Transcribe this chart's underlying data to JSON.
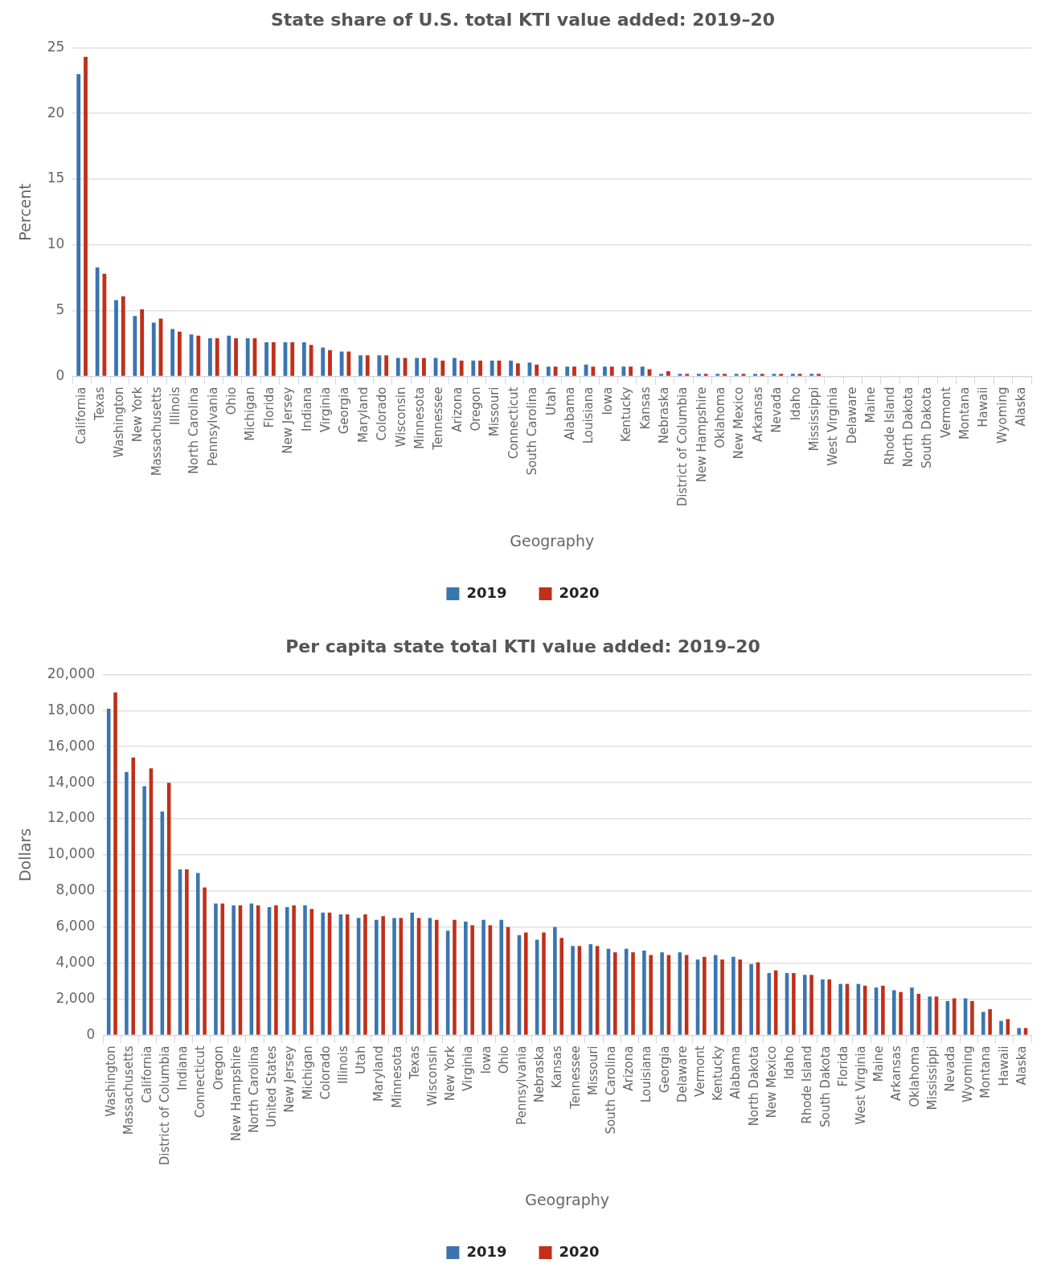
{
  "chart_data": [
    {
      "type": "bar",
      "title": "State share of U.S. total KTI value added: 2019–20",
      "xlabel": "Geography",
      "ylabel": "Percent",
      "categories": [
        "California",
        "Texas",
        "Washington",
        "New York",
        "Massachusetts",
        "Illinois",
        "North Carolina",
        "Pennsylvania",
        "Ohio",
        "Michigan",
        "Florida",
        "New Jersey",
        "Indiana",
        "Virginia",
        "Georgia",
        "Maryland",
        "Colorado",
        "Wisconsin",
        "Minnesota",
        "Tennessee",
        "Arizona",
        "Oregon",
        "Missouri",
        "Connecticut",
        "South Carolina",
        "Utah",
        "Alabama",
        "Louisiana",
        "Iowa",
        "Kentucky",
        "Kansas",
        "Nebraska",
        "District of Columbia",
        "New Hampshire",
        "Oklahoma",
        "New Mexico",
        "Arkansas",
        "Nevada",
        "Idaho",
        "Mississippi",
        "West Virginia",
        "Delaware",
        "Maine",
        "Rhode Island",
        "North Dakota",
        "South Dakota",
        "Vermont",
        "Montana",
        "Hawaii",
        "Wyoming",
        "Alaska"
      ],
      "series": [
        {
          "name": "2019",
          "color": "#3a75b0",
          "values": [
            23.0,
            8.3,
            5.8,
            4.6,
            4.1,
            3.6,
            3.2,
            2.9,
            3.1,
            2.9,
            2.6,
            2.6,
            2.6,
            2.2,
            1.9,
            1.6,
            1.6,
            1.4,
            1.4,
            1.4,
            1.4,
            1.2,
            1.2,
            1.2,
            1.05,
            0.75,
            0.75,
            0.9,
            0.75,
            0.75,
            0.75,
            0.2,
            0.2,
            0.2,
            0.2,
            0.2,
            0.2,
            0.2,
            0.2,
            0.2,
            0,
            0,
            0,
            0,
            0,
            0,
            0,
            0,
            0,
            0,
            0
          ]
        },
        {
          "name": "2020",
          "color": "#c0301a",
          "values": [
            24.3,
            7.8,
            6.1,
            5.1,
            4.4,
            3.4,
            3.1,
            2.9,
            2.9,
            2.9,
            2.6,
            2.6,
            2.4,
            2.0,
            1.9,
            1.6,
            1.6,
            1.4,
            1.4,
            1.2,
            1.2,
            1.2,
            1.2,
            1.0,
            0.9,
            0.75,
            0.75,
            0.75,
            0.75,
            0.75,
            0.55,
            0.4,
            0.2,
            0.2,
            0.2,
            0.2,
            0.2,
            0.2,
            0.2,
            0.2,
            0,
            0,
            0,
            0,
            0,
            0,
            0,
            0,
            0,
            0,
            0
          ]
        }
      ],
      "ylim": [
        0,
        25
      ],
      "yticks": [
        0,
        5,
        10,
        15,
        20,
        25
      ],
      "grid": "y",
      "legend": "bottom"
    },
    {
      "type": "bar",
      "title": "Per capita state total KTI value added: 2019–20",
      "xlabel": "Geography",
      "ylabel": "Dollars",
      "categories": [
        "Washington",
        "Massachusetts",
        "California",
        "District of Columbia",
        "Indiana",
        "Connecticut",
        "Oregon",
        "New Hampshire",
        "North Carolina",
        "United States",
        "New Jersey",
        "Michigan",
        "Colorado",
        "Illinois",
        "Utah",
        "Maryland",
        "Minnesota",
        "Texas",
        "Wisconsin",
        "New York",
        "Virginia",
        "Iowa",
        "Ohio",
        "Pennsylvania",
        "Nebraska",
        "Kansas",
        "Tennessee",
        "Missouri",
        "South Carolina",
        "Arizona",
        "Louisiana",
        "Georgia",
        "Delaware",
        "Vermont",
        "Kentucky",
        "Alabama",
        "North Dakota",
        "New Mexico",
        "Idaho",
        "Rhode Island",
        "South Dakota",
        "Florida",
        "West Virginia",
        "Maine",
        "Arkansas",
        "Oklahoma",
        "Mississippi",
        "Nevada",
        "Wyoming",
        "Montana",
        "Hawaii",
        "Alaska"
      ],
      "series": [
        {
          "name": "2019",
          "color": "#3a75b0",
          "values": [
            18100,
            14600,
            13800,
            12400,
            9200,
            9000,
            7300,
            7200,
            7300,
            7100,
            7100,
            7200,
            6800,
            6700,
            6500,
            6400,
            6500,
            6800,
            6500,
            5800,
            6300,
            6400,
            6400,
            5550,
            5300,
            6000,
            4950,
            5050,
            4800,
            4800,
            4700,
            4600,
            4600,
            4200,
            4450,
            4350,
            3950,
            3450,
            3450,
            3350,
            3100,
            2850,
            2850,
            2650,
            2500,
            2650,
            2150,
            1900,
            2050,
            1300,
            800,
            400
          ]
        },
        {
          "name": "2020",
          "color": "#c0301a",
          "values": [
            19000,
            15400,
            14800,
            14000,
            9200,
            8200,
            7300,
            7200,
            7200,
            7200,
            7200,
            7000,
            6800,
            6700,
            6700,
            6600,
            6500,
            6500,
            6400,
            6400,
            6100,
            6100,
            6000,
            5700,
            5700,
            5400,
            4950,
            4950,
            4600,
            4600,
            4450,
            4450,
            4450,
            4350,
            4200,
            4200,
            4050,
            3600,
            3450,
            3350,
            3100,
            2850,
            2750,
            2750,
            2400,
            2300,
            2150,
            2050,
            1900,
            1450,
            900,
            400
          ]
        }
      ],
      "ylim": [
        0,
        20000
      ],
      "yticks": [
        0,
        {
          "value": 2000,
          "label": "2,000"
        },
        {
          "value": 4000,
          "label": "4,000"
        },
        {
          "value": 6000,
          "label": "6,000"
        },
        {
          "value": 8000,
          "label": "8,000"
        },
        {
          "value": 10000,
          "label": "10,000"
        },
        {
          "value": 12000,
          "label": "12,000"
        },
        {
          "value": 14000,
          "label": "14,000"
        },
        {
          "value": 16000,
          "label": "16,000"
        },
        {
          "value": 18000,
          "label": "18,000"
        },
        {
          "value": 20000,
          "label": "20,000"
        }
      ],
      "grid": "y",
      "legend": "bottom"
    }
  ]
}
